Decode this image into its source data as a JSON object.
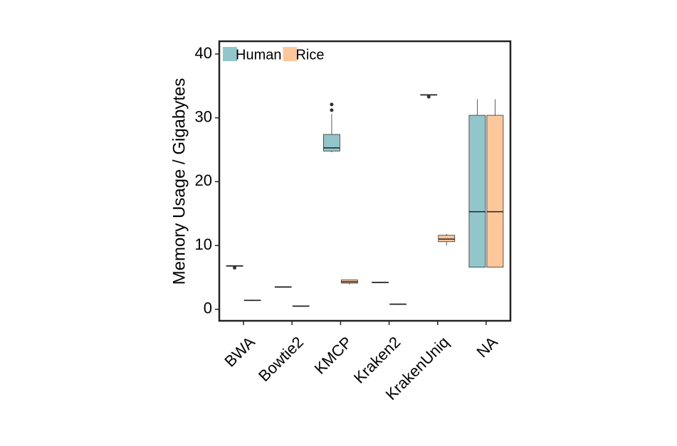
{
  "chart_data": {
    "type": "box",
    "y_label": "Memory Usage / Gigabytes",
    "categories": [
      "BWA",
      "Bowtie2",
      "KMCP",
      "Kraken2",
      "KrakenUniq",
      "NA"
    ],
    "ylim": [
      -1.8,
      42
    ],
    "yticks": [
      0,
      10,
      20,
      30,
      40
    ],
    "legend": "top-left",
    "series": [
      {
        "name": "Human",
        "color": "#93c6cb",
        "values": [
          {
            "min": 6.7,
            "q1": 6.75,
            "median": 6.8,
            "q3": 6.85,
            "max": 6.9,
            "outliers": [
              6.5
            ]
          },
          {
            "min": 3.4,
            "q1": 3.45,
            "median": 3.5,
            "q3": 3.55,
            "max": 3.6,
            "outliers": []
          },
          {
            "min": 24.6,
            "q1": 24.8,
            "median": 25.3,
            "q3": 27.4,
            "max": 30.6,
            "outliers": [
              31.2,
              32.1
            ]
          },
          {
            "min": 4.1,
            "q1": 4.15,
            "median": 4.2,
            "q3": 4.25,
            "max": 4.3,
            "outliers": []
          },
          {
            "min": 33.5,
            "q1": 33.55,
            "median": 33.6,
            "q3": 33.65,
            "max": 33.7,
            "outliers": [
              33.3
            ]
          },
          {
            "min": 6.6,
            "q1": 6.6,
            "median": 15.3,
            "q3": 30.4,
            "max": 32.9,
            "outliers": []
          }
        ]
      },
      {
        "name": "Rice",
        "color": "#fdc79c",
        "values": [
          {
            "min": 1.3,
            "q1": 1.35,
            "median": 1.4,
            "q3": 1.45,
            "max": 1.5,
            "outliers": []
          },
          {
            "min": 0.4,
            "q1": 0.45,
            "median": 0.5,
            "q3": 0.55,
            "max": 0.6,
            "outliers": []
          },
          {
            "min": 3.9,
            "q1": 4.1,
            "median": 4.3,
            "q3": 4.6,
            "max": 4.6,
            "outliers": []
          },
          {
            "min": 0.7,
            "q1": 0.75,
            "median": 0.8,
            "q3": 0.85,
            "max": 0.9,
            "outliers": []
          },
          {
            "min": 10.0,
            "q1": 10.6,
            "median": 11.0,
            "q3": 11.6,
            "max": 11.8,
            "outliers": []
          },
          {
            "min": 6.6,
            "q1": 6.6,
            "median": 15.3,
            "q3": 30.4,
            "max": 32.9,
            "outliers": []
          }
        ]
      }
    ]
  }
}
